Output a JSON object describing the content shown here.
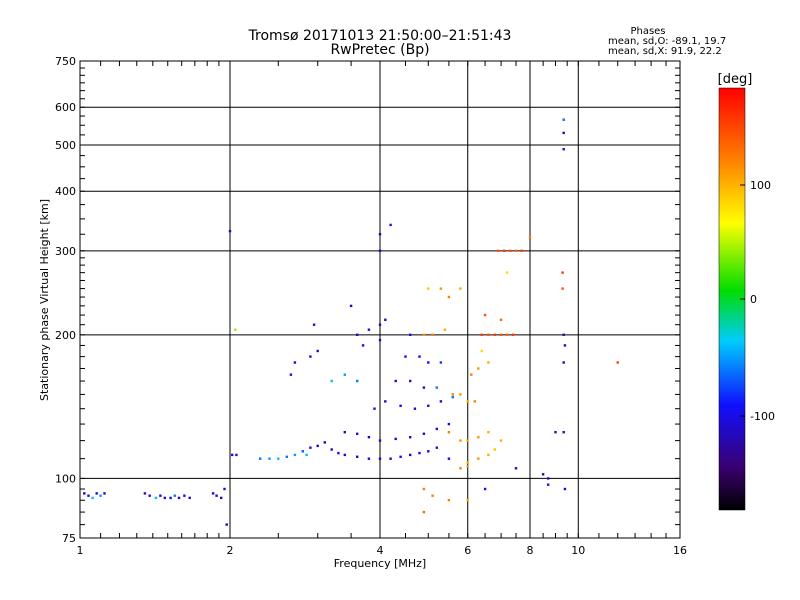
{
  "header": {
    "title_line1": "Tromsø 20171013 21:50:00–21:51:43",
    "title_line2": "RwPretec (Bp)",
    "stats_title": "Phases",
    "stats_o": "mean, sd,O:  -89.1, 19.7",
    "stats_x": "mean, sd,X:  91.9, 22.2"
  },
  "colorbar": {
    "unit": "[deg]",
    "ticks": [
      "100",
      "0",
      "-100"
    ]
  },
  "chart_data": {
    "type": "scatter",
    "title": "Tromsø 20171013 21:50:00–21:51:43",
    "subtitle": "RwPretec (Bp)",
    "xlabel": "Frequency [MHz]",
    "ylabel": "Stationary phase Virtual Height [km]",
    "x_scale": "log",
    "y_scale": "log",
    "xlim": [
      1,
      16
    ],
    "ylim": [
      75,
      750
    ],
    "x_ticks": [
      "1",
      "2",
      "4",
      "6",
      "8",
      "10",
      "16"
    ],
    "y_ticks": [
      "75",
      "100",
      "200",
      "300",
      "400",
      "500",
      "600",
      "750"
    ],
    "color_range": [
      -180,
      180
    ],
    "grid": true,
    "points": [
      [
        1.02,
        93,
        -120
      ],
      [
        1.04,
        92,
        -110
      ],
      [
        1.06,
        91,
        -40
      ],
      [
        1.08,
        93,
        -110
      ],
      [
        1.1,
        92,
        -50
      ],
      [
        1.12,
        93,
        -110
      ],
      [
        1.35,
        93,
        -110
      ],
      [
        1.38,
        92,
        -100
      ],
      [
        1.42,
        91,
        -40
      ],
      [
        1.45,
        92,
        -110
      ],
      [
        1.48,
        91,
        -100
      ],
      [
        1.52,
        91,
        -110
      ],
      [
        1.55,
        92,
        -60
      ],
      [
        1.58,
        91,
        -110
      ],
      [
        1.62,
        92,
        -100
      ],
      [
        1.66,
        91,
        -110
      ],
      [
        1.85,
        93,
        -110
      ],
      [
        1.88,
        92,
        -100
      ],
      [
        1.92,
        91,
        -120
      ],
      [
        1.95,
        95,
        -110
      ],
      [
        2.0,
        330,
        -120
      ],
      [
        2.05,
        205,
        40
      ],
      [
        2.02,
        112,
        -110
      ],
      [
        2.06,
        112,
        -100
      ],
      [
        1.97,
        80,
        -120
      ],
      [
        2.3,
        110,
        -60
      ],
      [
        2.4,
        110,
        -50
      ],
      [
        2.5,
        110,
        -40
      ],
      [
        2.6,
        111,
        -60
      ],
      [
        2.7,
        112,
        -50
      ],
      [
        2.8,
        114,
        -70
      ],
      [
        2.9,
        116,
        -100
      ],
      [
        3.0,
        117,
        -110
      ],
      [
        3.1,
        119,
        -120
      ],
      [
        2.85,
        112,
        -40
      ],
      [
        2.65,
        165,
        -100
      ],
      [
        2.7,
        175,
        -110
      ],
      [
        2.9,
        180,
        -100
      ],
      [
        3.0,
        185,
        -110
      ],
      [
        2.95,
        210,
        -100
      ],
      [
        3.2,
        115,
        -110
      ],
      [
        3.3,
        113,
        -100
      ],
      [
        3.4,
        112,
        -110
      ],
      [
        3.6,
        111,
        -120
      ],
      [
        3.8,
        110,
        -110
      ],
      [
        4.0,
        110,
        -120
      ],
      [
        4.2,
        110,
        -110
      ],
      [
        4.4,
        111,
        -100
      ],
      [
        4.6,
        112,
        -110
      ],
      [
        4.8,
        113,
        -100
      ],
      [
        5.0,
        114,
        -110
      ],
      [
        5.2,
        116,
        -100
      ],
      [
        3.4,
        125,
        -110
      ],
      [
        3.6,
        124,
        -100
      ],
      [
        3.8,
        122,
        -110
      ],
      [
        4.0,
        120,
        -120
      ],
      [
        4.3,
        121,
        -110
      ],
      [
        4.6,
        122,
        -100
      ],
      [
        4.9,
        124,
        -110
      ],
      [
        5.2,
        127,
        -100
      ],
      [
        5.5,
        130,
        -110
      ],
      [
        3.2,
        160,
        -40
      ],
      [
        3.4,
        165,
        -50
      ],
      [
        3.6,
        160,
        -60
      ],
      [
        3.9,
        140,
        -100
      ],
      [
        4.1,
        145,
        -110
      ],
      [
        4.4,
        142,
        -100
      ],
      [
        4.7,
        140,
        -110
      ],
      [
        5.0,
        142,
        -100
      ],
      [
        5.3,
        145,
        -110
      ],
      [
        5.6,
        148,
        -60
      ],
      [
        3.6,
        200,
        -110
      ],
      [
        3.8,
        205,
        -100
      ],
      [
        4.0,
        210,
        -120
      ],
      [
        4.1,
        215,
        -110
      ],
      [
        3.7,
        190,
        -100
      ],
      [
        4.0,
        195,
        -110
      ],
      [
        3.5,
        230,
        -120
      ],
      [
        4.0,
        300,
        -110
      ],
      [
        4.0,
        325,
        -120
      ],
      [
        4.2,
        340,
        -90
      ],
      [
        4.3,
        160,
        -110
      ],
      [
        4.6,
        160,
        -100
      ],
      [
        4.9,
        155,
        -110
      ],
      [
        5.2,
        155,
        -60
      ],
      [
        4.5,
        180,
        -100
      ],
      [
        4.8,
        180,
        -110
      ],
      [
        5.0,
        175,
        -100
      ],
      [
        5.3,
        175,
        -80
      ],
      [
        4.6,
        200,
        -100
      ],
      [
        4.9,
        200,
        110
      ],
      [
        5.1,
        200,
        120
      ],
      [
        5.4,
        205,
        100
      ],
      [
        5.0,
        250,
        90
      ],
      [
        5.3,
        250,
        110
      ],
      [
        5.5,
        240,
        120
      ],
      [
        5.8,
        250,
        100
      ],
      [
        5.6,
        150,
        120
      ],
      [
        5.8,
        150,
        110
      ],
      [
        6.0,
        145,
        100
      ],
      [
        6.2,
        145,
        120
      ],
      [
        5.5,
        125,
        120
      ],
      [
        5.8,
        120,
        110
      ],
      [
        6.0,
        120,
        100
      ],
      [
        6.3,
        122,
        110
      ],
      [
        6.6,
        125,
        100
      ],
      [
        6.0,
        108,
        100
      ],
      [
        6.3,
        110,
        110
      ],
      [
        6.6,
        112,
        100
      ],
      [
        6.8,
        115,
        90
      ],
      [
        7.0,
        120,
        100
      ],
      [
        5.8,
        105,
        120
      ],
      [
        6.0,
        106,
        110
      ],
      [
        5.5,
        110,
        -100
      ],
      [
        6.1,
        165,
        120
      ],
      [
        6.3,
        170,
        110
      ],
      [
        6.6,
        175,
        100
      ],
      [
        6.4,
        185,
        80
      ],
      [
        6.4,
        200,
        150
      ],
      [
        6.6,
        200,
        140
      ],
      [
        6.8,
        200,
        150
      ],
      [
        7.0,
        200,
        140
      ],
      [
        7.2,
        200,
        130
      ],
      [
        7.4,
        200,
        150
      ],
      [
        6.5,
        220,
        140
      ],
      [
        7.0,
        215,
        130
      ],
      [
        6.9,
        300,
        140
      ],
      [
        7.1,
        300,
        150
      ],
      [
        7.3,
        300,
        140
      ],
      [
        7.5,
        300,
        130
      ],
      [
        7.7,
        300,
        150
      ],
      [
        7.2,
        270,
        80
      ],
      [
        8.0,
        320,
        120
      ],
      [
        4.9,
        95,
        120
      ],
      [
        4.9,
        85,
        130
      ],
      [
        5.1,
        92,
        120
      ],
      [
        5.5,
        90,
        120
      ],
      [
        6.0,
        90,
        100
      ],
      [
        6.5,
        95,
        -100
      ],
      [
        7.5,
        105,
        -110
      ],
      [
        8.5,
        102,
        -130
      ],
      [
        8.7,
        100,
        -110
      ],
      [
        8.7,
        97,
        -90
      ],
      [
        9.4,
        95,
        -110
      ],
      [
        9.0,
        125,
        -110
      ],
      [
        9.35,
        200,
        -120
      ],
      [
        9.4,
        190,
        -110
      ],
      [
        9.35,
        175,
        -110
      ],
      [
        9.3,
        250,
        140
      ],
      [
        9.3,
        270,
        150
      ],
      [
        9.35,
        565,
        -30
      ],
      [
        9.35,
        565,
        -60
      ],
      [
        9.35,
        530,
        -120
      ],
      [
        9.35,
        490,
        -110
      ],
      [
        9.35,
        125,
        -110
      ],
      [
        12.0,
        175,
        150
      ]
    ]
  }
}
